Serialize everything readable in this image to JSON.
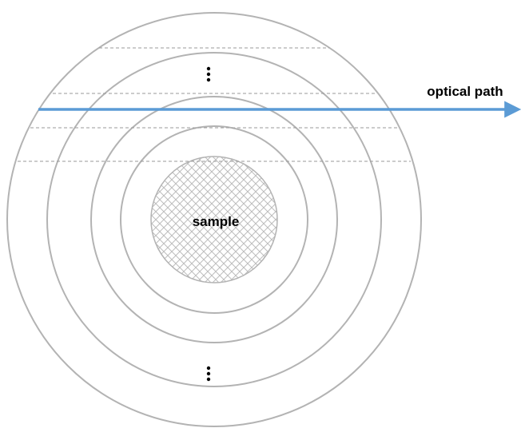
{
  "labels": {
    "optical_path": "optical path",
    "sample": "sample"
  },
  "colors": {
    "ring": "#b3b3b3",
    "dashed_line": "#9a9a9a",
    "optical_path": "#5b9bd5",
    "sample_fill": "#ffffff",
    "sample_hatch": "#bdbdbd",
    "text": "#000000"
  },
  "diagram": {
    "shapes": "concentric circles",
    "ring_count": 5,
    "inner_region": "sample",
    "hatch_pattern": "crosshatch",
    "dashed_chord_count": 4,
    "arrow": "optical path",
    "ellipsis": "vertical dots"
  }
}
